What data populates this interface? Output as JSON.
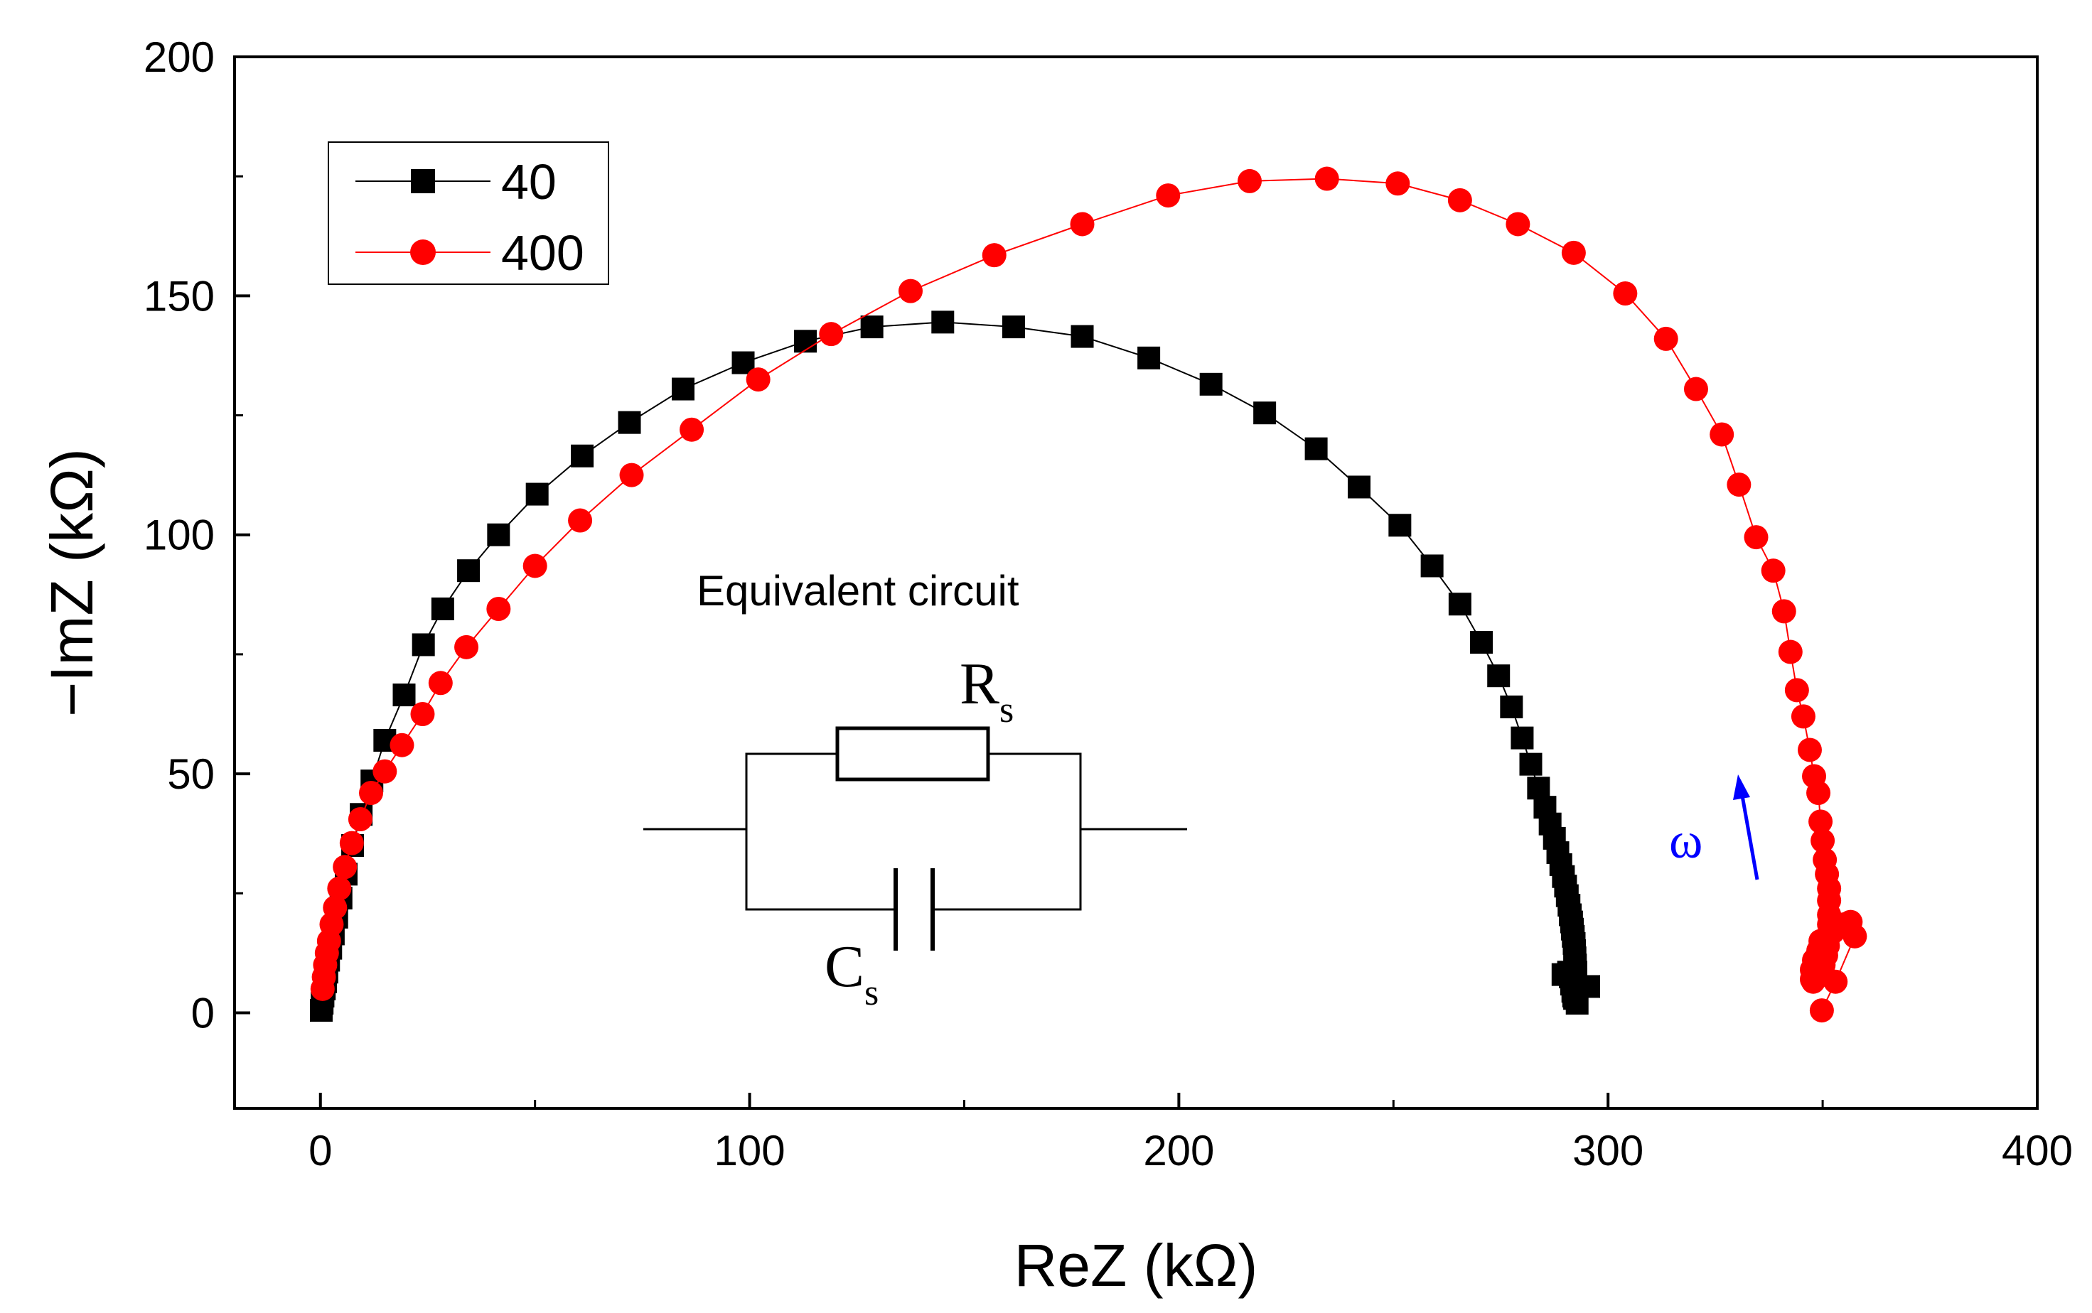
{
  "chart_data": {
    "type": "scatter",
    "title": "",
    "xlabel": "ReZ (kΩ)",
    "ylabel": "−ImZ (kΩ)",
    "xlim": [
      -20,
      400
    ],
    "ylim": [
      -20,
      200
    ],
    "xticks": [
      0,
      100,
      200,
      300,
      400
    ],
    "yticks": [
      0,
      50,
      100,
      150,
      200
    ],
    "xtick_labels": [
      "0",
      "100",
      "200",
      "300",
      "400"
    ],
    "ytick_labels": [
      "0",
      "50",
      "100",
      "150",
      "200"
    ],
    "grid": false,
    "legend_position": "top-left",
    "series": [
      {
        "name": "40",
        "color": "#000000",
        "marker": "square",
        "x": [
          0.2,
          0.4,
          0.6,
          0.9,
          1.2,
          1.5,
          1.9,
          2.4,
          3,
          3.8,
          4.8,
          6,
          7.5,
          9.5,
          12,
          15,
          19.5,
          24,
          28.5,
          34.5,
          41.5,
          50.5,
          61,
          72,
          84.5,
          98.5,
          113,
          128.5,
          145,
          161.5,
          177.5,
          193,
          207.5,
          220,
          232,
          242,
          251.5,
          259,
          265.5,
          270.5,
          274.5,
          277.5,
          280,
          282,
          283.8,
          285.3,
          286.5,
          287.5,
          288.3,
          289,
          289.6,
          290.1,
          290.5,
          290.9,
          291.2,
          291.5,
          291.7,
          291.9,
          292.1,
          292.2,
          292.3,
          292.4,
          292.5,
          292.5,
          292.5,
          292.4,
          292.3,
          292.2,
          292,
          291.8,
          291.5,
          291.2,
          290.8,
          289.5,
          292,
          295.5,
          292.8
        ],
        "y": [
          0.5,
          2,
          3.5,
          5,
          6.5,
          8.5,
          11,
          13.5,
          16.5,
          20,
          24,
          29,
          35,
          41.5,
          48.5,
          57,
          66.5,
          77,
          84.5,
          92.5,
          100,
          108.5,
          116.5,
          123.5,
          130.5,
          136,
          140.5,
          143.5,
          144.5,
          143.5,
          141.5,
          137,
          131.5,
          125.5,
          118,
          110,
          102,
          93.5,
          85.5,
          77.5,
          70.5,
          64,
          57.5,
          52,
          47,
          43,
          39.5,
          36.5,
          33.5,
          31,
          28.5,
          26.5,
          24.5,
          22.5,
          20.5,
          19,
          17.5,
          16,
          14.5,
          13,
          11.5,
          10,
          8.5,
          7,
          5.5,
          4.5,
          3.5,
          3,
          3.5,
          4.5,
          6,
          7.5,
          8.5,
          8,
          6.5,
          5.5,
          2
        ]
      },
      {
        "name": "400",
        "color": "#ff0000",
        "marker": "circle",
        "x": [
          0.5,
          0.8,
          1.1,
          1.5,
          2,
          2.6,
          3.4,
          4.4,
          5.7,
          7.3,
          9.3,
          11.8,
          15,
          19,
          23.8,
          28,
          34,
          41.5,
          50,
          60.5,
          72.5,
          86.5,
          102,
          119,
          137.5,
          157,
          177.5,
          197.5,
          216.5,
          234.5,
          251,
          265.5,
          279,
          292,
          304,
          313.5,
          320.5,
          326.5,
          330.5,
          334.5,
          338.5,
          341,
          342.5,
          344,
          345.5,
          347,
          348,
          349,
          349.5,
          350,
          350.5,
          351,
          351.5,
          351.5,
          351.5,
          351.5,
          351.5,
          351.2,
          350.8,
          350.2,
          349.5,
          348.8,
          348.2,
          347.8,
          347.5,
          347.5,
          348,
          349,
          349.5,
          352.5,
          355,
          356.5,
          357.5,
          353,
          349.8
        ],
        "y": [
          5,
          7.5,
          10,
          12.5,
          15,
          18.5,
          22,
          26,
          30.5,
          35.5,
          40.5,
          46,
          50.5,
          56,
          62.5,
          69,
          76.5,
          84.5,
          93.5,
          103,
          112.5,
          122,
          132.5,
          142,
          151,
          158.5,
          165,
          171,
          174,
          174.5,
          173.5,
          170,
          165,
          159,
          150.5,
          141,
          130.5,
          121,
          110.5,
          99.5,
          92.5,
          84,
          75.5,
          67.5,
          62,
          55,
          49.5,
          46,
          40,
          36,
          32,
          29,
          26,
          23.5,
          20.5,
          18.5,
          16,
          14,
          12,
          10,
          9,
          8,
          7,
          6.5,
          7,
          9,
          11,
          13,
          15,
          17,
          18.5,
          19,
          16,
          6.5,
          0.5
        ]
      }
    ],
    "annotations": {
      "inset_title": "Equivalent circuit",
      "resistor_label": "R",
      "resistor_subscript": "s",
      "capacitor_label": "C",
      "capacitor_subscript": "s",
      "omega_label": "ω",
      "omega_color": "#0000ff"
    }
  }
}
